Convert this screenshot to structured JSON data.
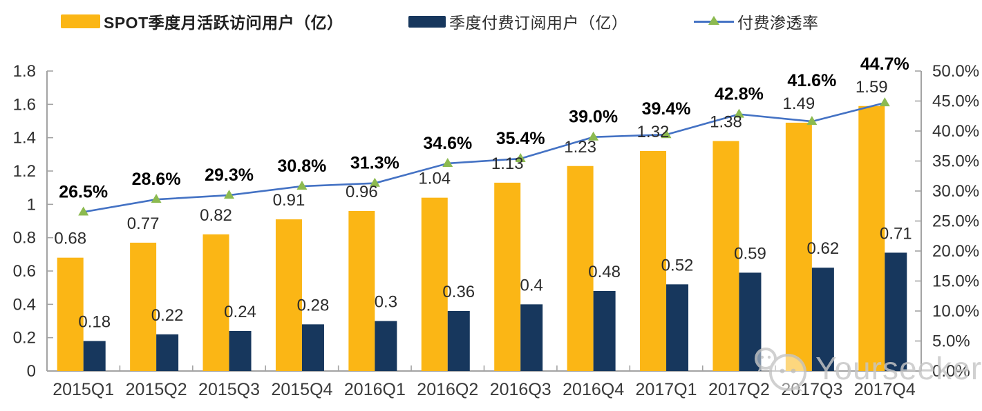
{
  "legend": [
    {
      "label": "SPOT季度月活跃访问用户（亿）",
      "type": "bar",
      "color": "#FBB615"
    },
    {
      "label": "季度付费订阅用户（亿）",
      "type": "bar",
      "color": "#17375D"
    },
    {
      "label": "付费渗透率",
      "type": "line",
      "color": "#4472C4",
      "marker_color": "#8CBA50"
    }
  ],
  "chart_data": {
    "type": "bar",
    "subtype": "bar+line-combo",
    "categories": [
      "2015Q1",
      "2015Q2",
      "2015Q3",
      "2015Q4",
      "2016Q1",
      "2016Q2",
      "2016Q3",
      "2016Q4",
      "2017Q1",
      "2017Q2",
      "2017Q3",
      "2017Q4"
    ],
    "series": [
      {
        "name": "SPOT季度月活跃访问用户（亿）",
        "type": "bar",
        "axis": "left",
        "color": "#FBB615",
        "values": [
          0.68,
          0.77,
          0.82,
          0.91,
          0.96,
          1.04,
          1.13,
          1.23,
          1.32,
          1.38,
          1.49,
          1.59
        ],
        "labels": [
          "0.68",
          "0.77",
          "0.82",
          "0.91",
          "0.96",
          "1.04",
          "1.13",
          "1.23",
          "1.32",
          "1.38",
          "1.49",
          "1.59"
        ]
      },
      {
        "name": "季度付费订阅用户（亿）",
        "type": "bar",
        "axis": "left",
        "color": "#17375D",
        "values": [
          0.18,
          0.22,
          0.24,
          0.28,
          0.3,
          0.36,
          0.4,
          0.48,
          0.52,
          0.59,
          0.62,
          0.71
        ],
        "labels": [
          "0.18",
          "0.22",
          "0.24",
          "0.28",
          "0.3",
          "0.36",
          "0.4",
          "0.48",
          "0.52",
          "0.59",
          "0.62",
          "0.71"
        ]
      },
      {
        "name": "付费渗透率",
        "type": "line",
        "axis": "right",
        "color": "#4472C4",
        "marker": "triangle",
        "marker_color": "#8CBA50",
        "values": [
          26.5,
          28.6,
          29.3,
          30.8,
          31.3,
          34.6,
          35.4,
          39.0,
          39.4,
          42.8,
          41.6,
          44.7
        ],
        "labels": [
          "26.5%",
          "28.6%",
          "29.3%",
          "30.8%",
          "31.3%",
          "34.6%",
          "35.4%",
          "39.0%",
          "39.4%",
          "42.8%",
          "41.6%",
          "44.7%"
        ]
      }
    ],
    "left_axis": {
      "min": 0,
      "max": 1.8,
      "ticks": [
        "1.8",
        "1.6",
        "1.4",
        "1.2",
        "1",
        "0.8",
        "0.6",
        "0.4",
        "0.2",
        "0"
      ]
    },
    "right_axis": {
      "min": 0,
      "max": 50,
      "ticks": [
        "50.0%",
        "45.0%",
        "40.0%",
        "35.0%",
        "30.0%",
        "25.0%",
        "20.0%",
        "15.0%",
        "10.0%",
        "5.0%",
        "0.0%"
      ]
    },
    "title": "",
    "xlabel": "",
    "ylabel": "",
    "grid": false,
    "legend_position": "top"
  },
  "colors": {
    "axis": "#A3A3A3",
    "tick_label": "#303030",
    "bar_value_label": "#2b2b2b",
    "percent_label": "#000000",
    "x_label": "#3a3a3a"
  },
  "watermark": {
    "text": "Yourseeker",
    "icon": "wechat-icon",
    "color": "#c6c6c6"
  }
}
